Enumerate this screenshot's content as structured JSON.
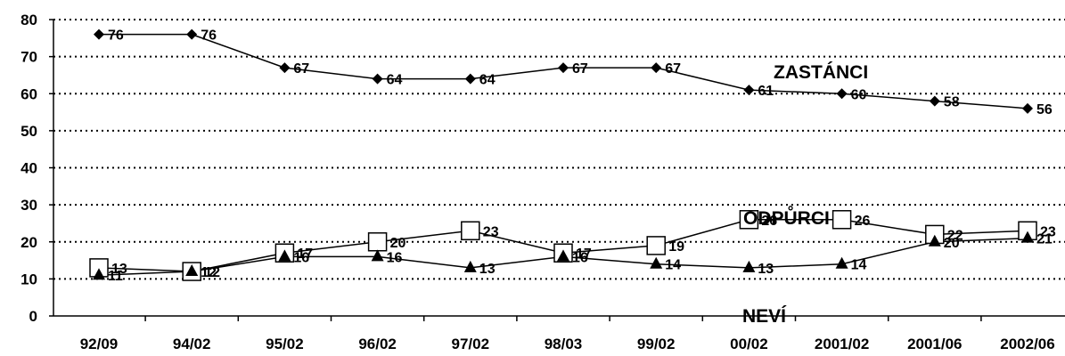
{
  "chart_data": {
    "type": "line",
    "categories": [
      "92/09",
      "94/02",
      "95/02",
      "96/02",
      "97/02",
      "98/03",
      "99/02",
      "00/02",
      "2001/02",
      "2001/06",
      "2002/06"
    ],
    "ylim": [
      0,
      80
    ],
    "yticks": [
      0,
      10,
      20,
      30,
      40,
      50,
      60,
      70,
      80
    ],
    "grid": "horizontal dotted",
    "series": [
      {
        "name": "ZASTÁNCI",
        "marker": "diamond",
        "values": [
          76,
          76,
          67,
          64,
          64,
          67,
          67,
          61,
          60,
          58,
          56
        ]
      },
      {
        "name": "ODPŮRCI",
        "marker": "square",
        "values": [
          13,
          12,
          17,
          20,
          23,
          17,
          19,
          26,
          26,
          22,
          23
        ]
      },
      {
        "name": "NEVÍ",
        "marker": "triangle",
        "values": [
          11,
          12,
          16,
          16,
          13,
          16,
          14,
          13,
          14,
          20,
          21
        ]
      }
    ],
    "color": "#000000"
  }
}
